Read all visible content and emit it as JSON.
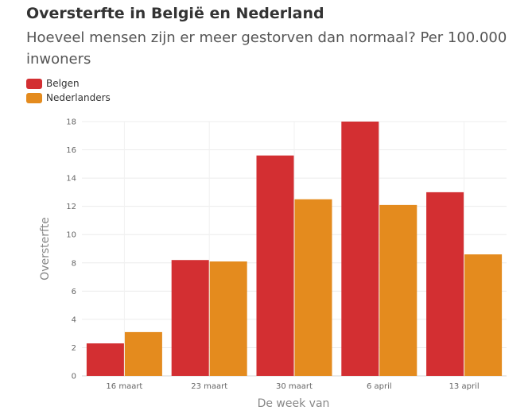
{
  "chart_data": {
    "type": "bar",
    "title": "Oversterfte in België en Nederland",
    "subtitle": "Hoeveel mensen zijn er meer gestorven dan normaal? Per 100.000 inwoners",
    "xlabel": "De week van",
    "ylabel": "Oversterfte",
    "ylim": [
      0,
      18
    ],
    "yticks": [
      0,
      2,
      4,
      6,
      8,
      10,
      12,
      14,
      16,
      18
    ],
    "categories": [
      "16 maart",
      "23 maart",
      "30 maart",
      "6 april",
      "13 april"
    ],
    "series": [
      {
        "name": "Belgen",
        "color": "#d32f32",
        "values": [
          2.3,
          8.2,
          15.6,
          18.0,
          13.0
        ]
      },
      {
        "name": "Nederlanders",
        "color": "#e48b1e",
        "values": [
          3.1,
          8.1,
          12.5,
          12.1,
          8.6
        ]
      }
    ],
    "grid": true,
    "legend_position": "top-left"
  }
}
